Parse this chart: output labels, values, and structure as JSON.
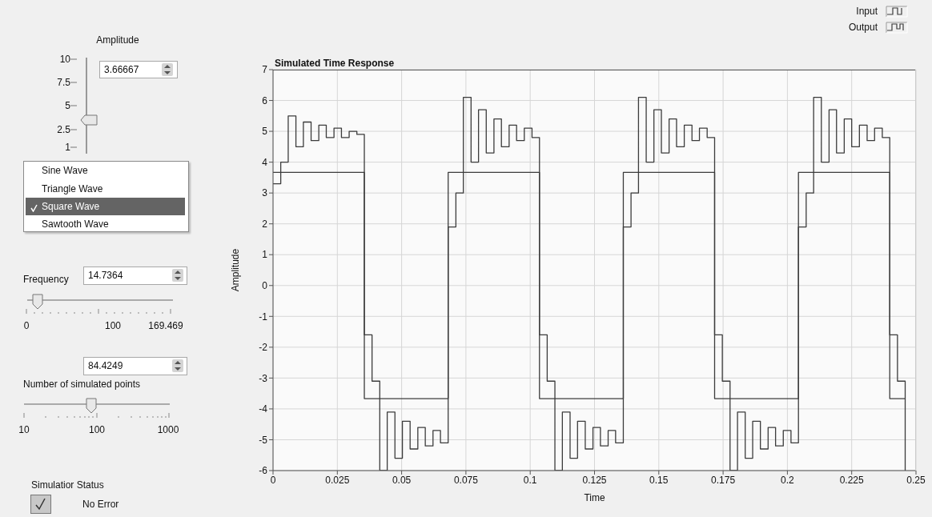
{
  "chart_data": [
    {
      "type": "step",
      "title": "Simulated Time Response",
      "xlabel": "Time",
      "ylabel": "Amplitude",
      "xlim": [
        0,
        0.25
      ],
      "ylim": [
        -6,
        7
      ],
      "xticks": [
        0,
        0.025,
        0.05,
        0.075,
        0.1,
        0.125,
        0.15,
        0.175,
        0.2,
        0.225,
        0.25
      ],
      "yticks": [
        -6,
        -5,
        -4,
        -3,
        -2,
        -1,
        0,
        1,
        2,
        3,
        4,
        5,
        6,
        7
      ],
      "grid": true,
      "legend": "top right",
      "marker": "none",
      "line_style": "solid",
      "x": [
        0,
        0.003,
        0.0059,
        0.0089,
        0.0118,
        0.0148,
        0.0178,
        0.0207,
        0.0237,
        0.0266,
        0.0296,
        0.0326,
        0.0355,
        0.0385,
        0.0415,
        0.0444,
        0.0474,
        0.0503,
        0.0533,
        0.0563,
        0.0592,
        0.0622,
        0.0651,
        0.0681,
        0.0711,
        0.074,
        0.077,
        0.0799,
        0.0829,
        0.0859,
        0.0888,
        0.0918,
        0.0947,
        0.0977,
        0.1007,
        0.1036,
        0.1066,
        0.1096,
        0.1125,
        0.1155,
        0.1184,
        0.1214,
        0.1244,
        0.1273,
        0.1303,
        0.1332,
        0.1362,
        0.1392,
        0.1421,
        0.1451,
        0.1481,
        0.151,
        0.154,
        0.1569,
        0.1599,
        0.1629,
        0.1658,
        0.1688,
        0.1717,
        0.1747,
        0.1777,
        0.1806,
        0.1836,
        0.1865,
        0.1895,
        0.1925,
        0.1954,
        0.1984,
        0.2014,
        0.2043,
        0.2073,
        0.2102,
        0.2132,
        0.2162,
        0.2191,
        0.2221,
        0.225,
        0.228,
        0.231,
        0.2339,
        0.2369,
        0.2398,
        0.2428,
        0.2458
      ],
      "series": [
        {
          "name": "Input",
          "color": "#3c3c3c",
          "values": [
            3.66667,
            3.66667,
            3.66667,
            3.66667,
            3.66667,
            3.66667,
            3.66667,
            3.66667,
            3.66667,
            3.66667,
            3.66667,
            3.66667,
            -3.66667,
            -3.66667,
            -3.66667,
            -3.66667,
            -3.66667,
            -3.66667,
            -3.66667,
            -3.66667,
            -3.66667,
            -3.66667,
            -3.66667,
            3.66667,
            3.66667,
            3.66667,
            3.66667,
            3.66667,
            3.66667,
            3.66667,
            3.66667,
            3.66667,
            3.66667,
            3.66667,
            3.66667,
            -3.66667,
            -3.66667,
            -3.66667,
            -3.66667,
            -3.66667,
            -3.66667,
            -3.66667,
            -3.66667,
            -3.66667,
            -3.66667,
            -3.66667,
            3.66667,
            3.66667,
            3.66667,
            3.66667,
            3.66667,
            3.66667,
            3.66667,
            3.66667,
            3.66667,
            3.66667,
            3.66667,
            3.66667,
            -3.66667,
            -3.66667,
            -3.66667,
            -3.66667,
            -3.66667,
            -3.66667,
            -3.66667,
            -3.66667,
            -3.66667,
            -3.66667,
            -3.66667,
            3.66667,
            3.66667,
            3.66667,
            3.66667,
            3.66667,
            3.66667,
            3.66667,
            3.66667,
            3.66667,
            3.66667,
            3.66667,
            3.66667,
            -3.66667,
            -3.66667,
            -3.66667
          ]
        },
        {
          "name": "Output",
          "color": "#3c3c3c",
          "values": [
            3.3,
            4.0,
            5.5,
            4.5,
            5.3,
            4.7,
            5.2,
            4.8,
            5.1,
            4.8,
            5.0,
            4.9,
            -1.6,
            -3.1,
            -6.0,
            -4.1,
            -5.6,
            -4.4,
            -5.3,
            -4.6,
            -5.2,
            -4.7,
            -5.1,
            1.9,
            3.0,
            6.1,
            4.0,
            5.7,
            4.3,
            5.4,
            4.5,
            5.2,
            4.7,
            5.1,
            4.8,
            -1.6,
            -3.1,
            -6.0,
            -4.1,
            -5.6,
            -4.4,
            -5.3,
            -4.6,
            -5.2,
            -4.7,
            -5.1,
            1.9,
            3.0,
            6.1,
            4.0,
            5.7,
            4.3,
            5.4,
            4.5,
            5.2,
            4.7,
            5.1,
            4.8,
            -1.6,
            -3.1,
            -6.0,
            -4.1,
            -5.6,
            -4.4,
            -5.3,
            -4.6,
            -5.2,
            -4.7,
            -5.1,
            1.9,
            3.0,
            6.1,
            4.0,
            5.7,
            4.3,
            5.4,
            4.5,
            5.2,
            4.7,
            5.1,
            4.8,
            -1.6,
            -3.1,
            -6.0
          ]
        }
      ]
    },
    {
      "type": "other",
      "annotations": [
        "Amplitude",
        "10",
        "7.5",
        "5",
        "2.5",
        "1",
        "3.66667",
        "Sine Wave",
        "Triangle Wave",
        "Square Wave",
        "Sawtooth Wave",
        "Frequency",
        "14.7364",
        "0",
        "100",
        "169.469",
        "84.4249",
        "Number of simulated points",
        "10",
        "100",
        "1000",
        "Simulatior Status",
        "No Error"
      ]
    }
  ]
}
